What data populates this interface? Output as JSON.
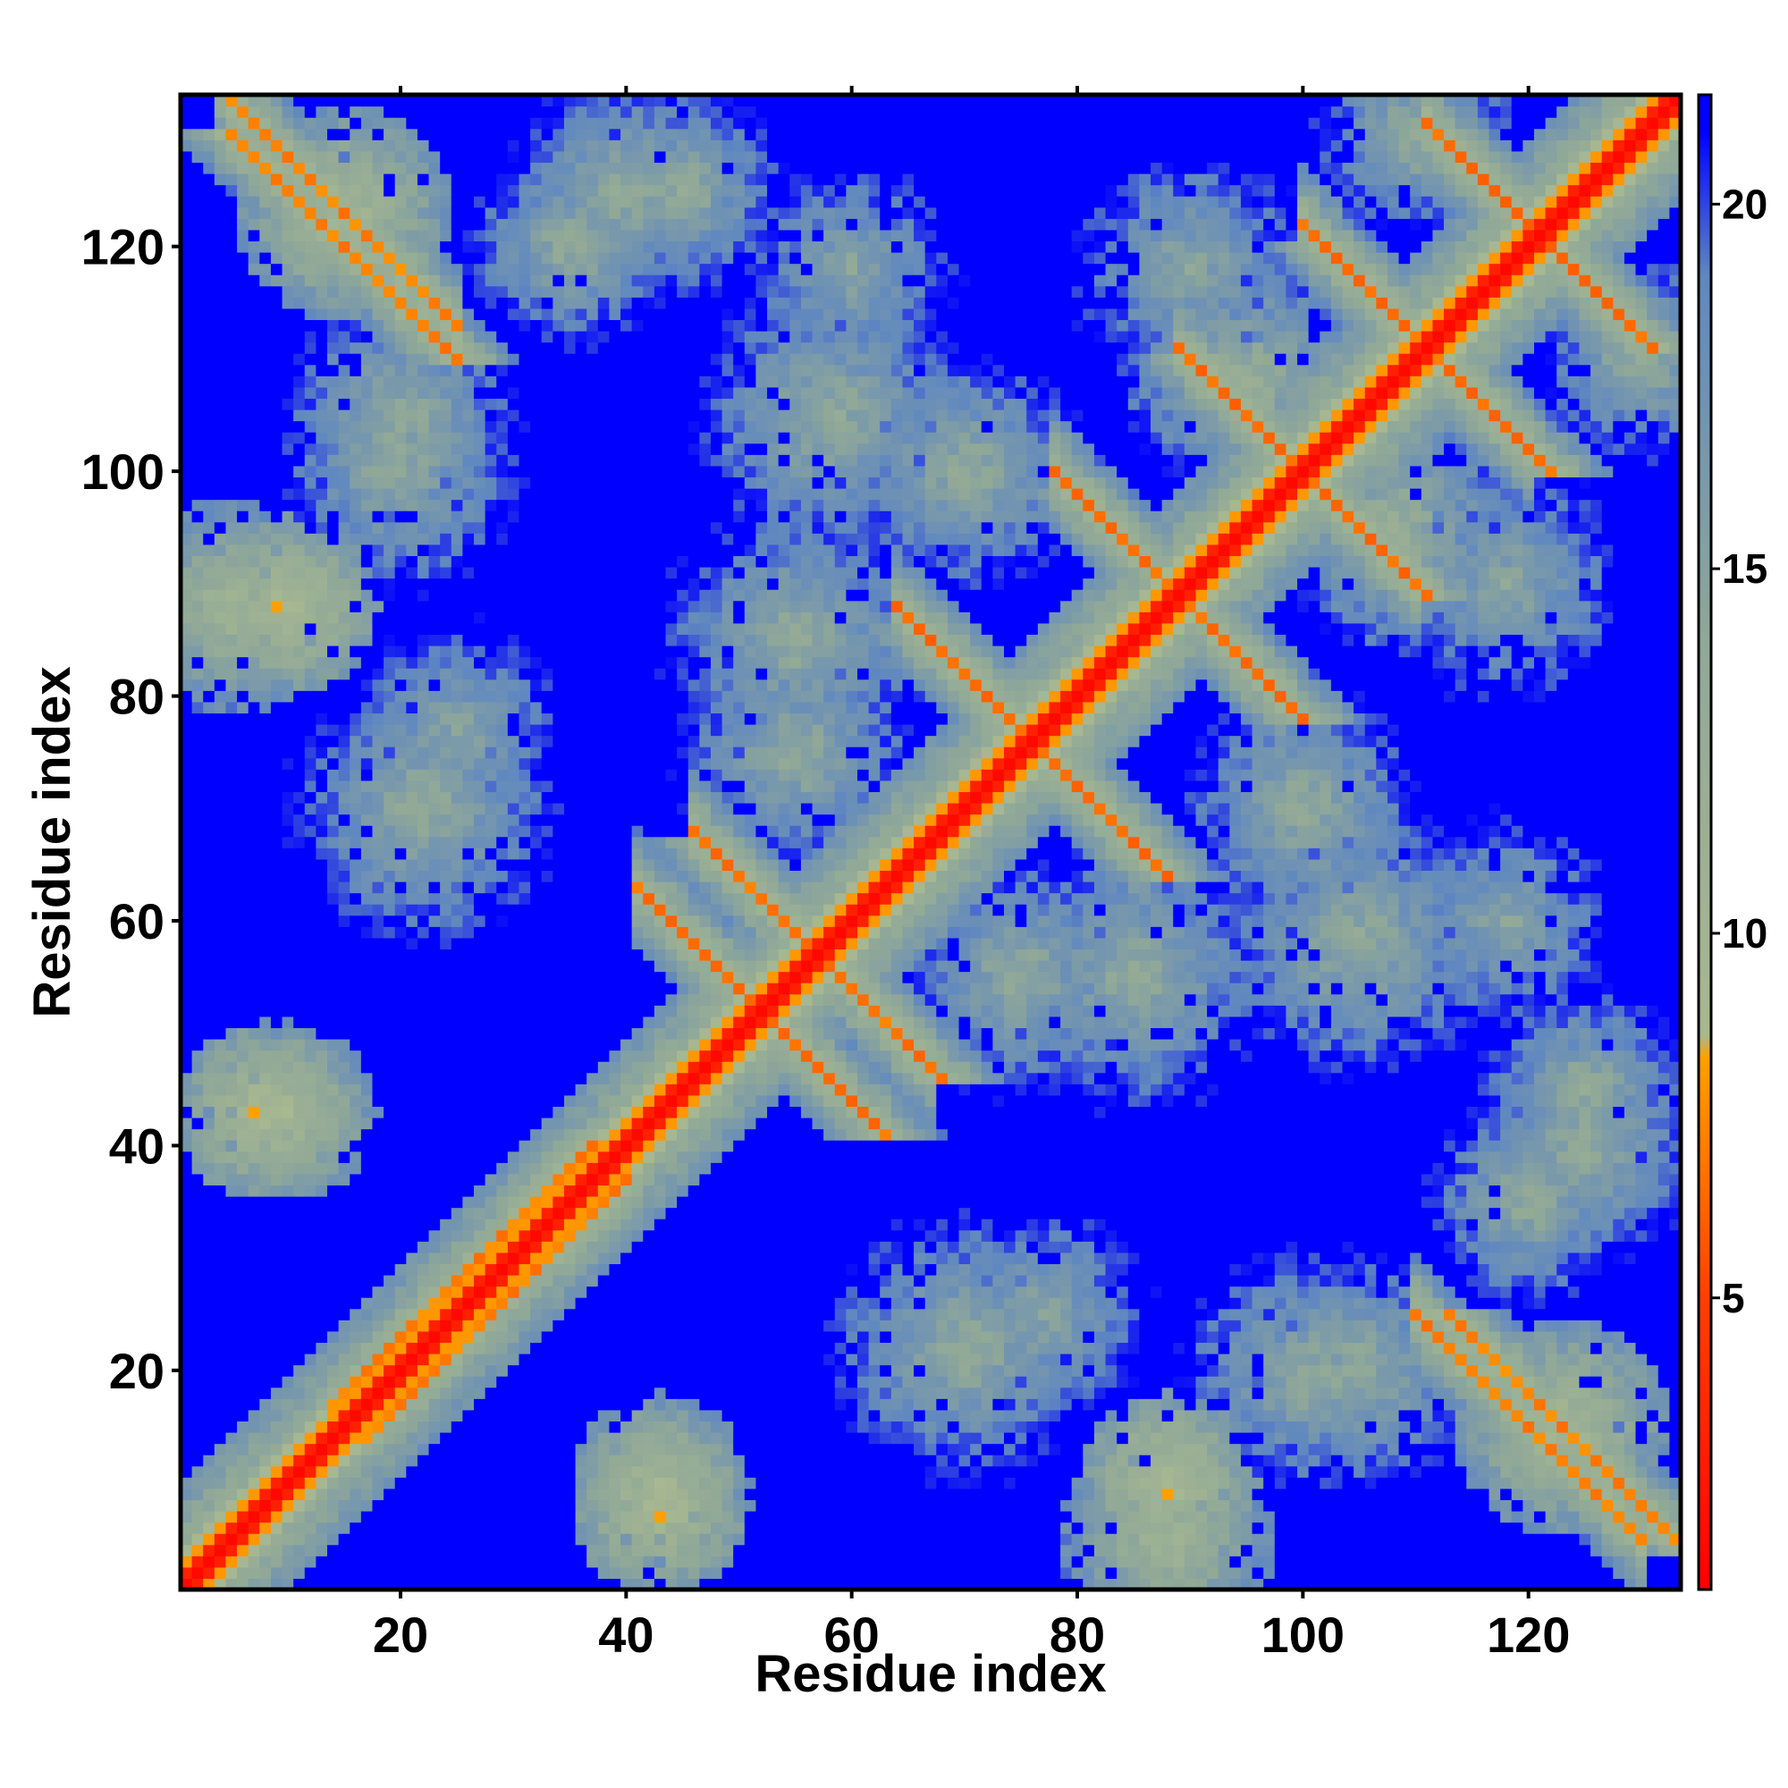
{
  "chart_data": {
    "type": "heatmap",
    "title": "",
    "xlabel": "Residue index",
    "ylabel": "Residue index",
    "n_residues": 133,
    "xlim": [
      1,
      133
    ],
    "ylim": [
      1,
      133
    ],
    "x_ticks": [
      20,
      40,
      60,
      80,
      100,
      120
    ],
    "y_ticks": [
      20,
      40,
      60,
      80,
      100,
      120
    ],
    "colorbar": {
      "ticks": [
        5,
        10,
        15,
        20
      ],
      "range": [
        1,
        21.5
      ],
      "stops": [
        {
          "value": 1,
          "color": "#ff0000"
        },
        {
          "value": 5,
          "color": "#ff4000"
        },
        {
          "value": 8.3,
          "color": "#ffa000"
        },
        {
          "value": 8.6,
          "color": "#a8b890"
        },
        {
          "value": 14,
          "color": "#90a898"
        },
        {
          "value": 19,
          "color": "#6088c0"
        },
        {
          "value": 21,
          "color": "#0000ff"
        }
      ]
    },
    "cap_value": 21.5,
    "diagonal_value": 1.5,
    "secondary_structure_bands": [
      {
        "type": "parallel",
        "i_start": 1,
        "i_end": 48,
        "offset": 1,
        "value": 6
      },
      {
        "type": "parallel",
        "i_start": 14,
        "i_end": 37,
        "offset": 3,
        "value": 6.5
      },
      {
        "type": "antiparallel",
        "i_start": 41,
        "i_end": 58,
        "j_sum": 104,
        "value": 6
      },
      {
        "type": "antiparallel",
        "i_start": 46,
        "i_end": 67,
        "j_sum": 114,
        "value": 6
      },
      {
        "type": "antiparallel",
        "i_start": 64,
        "i_end": 86,
        "j_sum": 152,
        "value": 6
      },
      {
        "type": "antiparallel",
        "i_start": 78,
        "i_end": 98,
        "j_sum": 178,
        "value": 6
      },
      {
        "type": "antiparallel",
        "i_start": 89,
        "i_end": 110,
        "j_sum": 200,
        "value": 6
      },
      {
        "type": "antiparallel",
        "i_start": 100,
        "i_end": 120,
        "j_sum": 222,
        "value": 6
      },
      {
        "type": "antiparallel",
        "i_start": 111,
        "i_end": 129,
        "j_sum": 242,
        "value": 6
      },
      {
        "type": "antiparallel",
        "i_start": 4,
        "i_end": 25,
        "j_sum": 138,
        "value": 6.5
      },
      {
        "type": "antiparallel",
        "i_start": 110,
        "i_end": 130,
        "j_sum": 135,
        "value": 6.5
      }
    ],
    "contact_blobs": [
      {
        "center": [
          10,
          88
        ],
        "radius": 5,
        "value": 7
      },
      {
        "center": [
          10,
          43
        ],
        "radius": 5,
        "value": 8
      },
      {
        "center": [
          22,
          70
        ],
        "radius": 8,
        "value": 12
      },
      {
        "center": [
          20,
          105
        ],
        "radius": 7,
        "value": 12
      },
      {
        "center": [
          45,
          125
        ],
        "radius": 6,
        "value": 12
      },
      {
        "center": [
          43,
          8
        ],
        "radius": 5,
        "value": 7
      },
      {
        "center": [
          55,
          85
        ],
        "radius": 8,
        "value": 12
      },
      {
        "center": [
          60,
          118
        ],
        "radius": 7,
        "value": 13
      },
      {
        "center": [
          75,
          55
        ],
        "radius": 7,
        "value": 12
      },
      {
        "center": [
          77,
          25
        ],
        "radius": 7,
        "value": 13
      },
      {
        "center": [
          88,
          5
        ],
        "radius": 6,
        "value": 9
      },
      {
        "center": [
          100,
          20
        ],
        "radius": 7,
        "value": 12
      },
      {
        "center": [
          105,
          58
        ],
        "radius": 8,
        "value": 12
      },
      {
        "center": [
          118,
          90
        ],
        "radius": 8,
        "value": 13
      },
      {
        "center": [
          125,
          40
        ],
        "radius": 7,
        "value": 12
      },
      {
        "center": [
          123,
          15
        ],
        "radius": 6,
        "value": 8
      },
      {
        "center": [
          110,
          130
        ],
        "radius": 6,
        "value": 12
      },
      {
        "center": [
          95,
          108
        ],
        "radius": 7,
        "value": 11
      },
      {
        "center": [
          70,
          100
        ],
        "radius": 7,
        "value": 12
      },
      {
        "center": [
          35,
          120
        ],
        "radius": 6,
        "value": 12
      }
    ]
  }
}
